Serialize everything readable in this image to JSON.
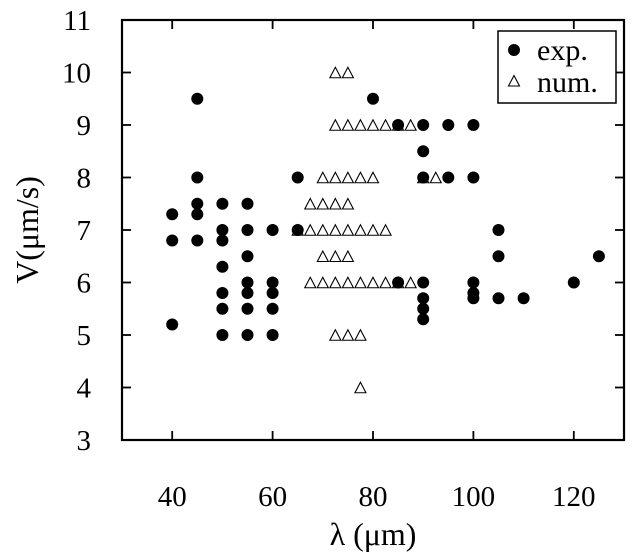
{
  "chart_data": {
    "type": "scatter",
    "xlabel": "λ (μm)",
    "ylabel": "V(μm/s)",
    "xlim": [
      30,
      130
    ],
    "ylim": [
      3,
      11
    ],
    "xticks": [
      40,
      60,
      80,
      100,
      120
    ],
    "yticks": [
      3,
      4,
      5,
      6,
      7,
      8,
      9,
      10,
      11
    ],
    "grid": false,
    "legend_position": "top-right",
    "series": [
      {
        "name": "exp.",
        "marker": "filled-circle",
        "color": "#000000",
        "points": [
          [
            40,
            7.3
          ],
          [
            40,
            6.8
          ],
          [
            40,
            5.2
          ],
          [
            45,
            9.5
          ],
          [
            45,
            8.0
          ],
          [
            45,
            7.5
          ],
          [
            45,
            7.3
          ],
          [
            45,
            6.8
          ],
          [
            50,
            7.5
          ],
          [
            50,
            7.0
          ],
          [
            50,
            6.8
          ],
          [
            50,
            6.3
          ],
          [
            50,
            5.8
          ],
          [
            50,
            5.5
          ],
          [
            50,
            5.0
          ],
          [
            55,
            7.5
          ],
          [
            55,
            7.0
          ],
          [
            55,
            6.5
          ],
          [
            55,
            6.0
          ],
          [
            55,
            5.8
          ],
          [
            55,
            5.5
          ],
          [
            55,
            5.0
          ],
          [
            60,
            7.0
          ],
          [
            60,
            6.0
          ],
          [
            60,
            5.8
          ],
          [
            60,
            5.5
          ],
          [
            60,
            5.0
          ],
          [
            65,
            8.0
          ],
          [
            65,
            7.0
          ],
          [
            80,
            9.5
          ],
          [
            85,
            9.0
          ],
          [
            85,
            6.0
          ],
          [
            90,
            9.0
          ],
          [
            90,
            8.5
          ],
          [
            90,
            8.0
          ],
          [
            90,
            6.0
          ],
          [
            90,
            5.7
          ],
          [
            90,
            5.5
          ],
          [
            90,
            5.3
          ],
          [
            95,
            9.0
          ],
          [
            95,
            8.0
          ],
          [
            100,
            9.0
          ],
          [
            100,
            8.0
          ],
          [
            100,
            6.0
          ],
          [
            100,
            5.8
          ],
          [
            100,
            5.7
          ],
          [
            105,
            7.0
          ],
          [
            105,
            6.5
          ],
          [
            105,
            5.7
          ],
          [
            110,
            5.7
          ],
          [
            120,
            6.0
          ],
          [
            125,
            6.5
          ]
        ]
      },
      {
        "name": "num.",
        "marker": "open-triangle",
        "color": "#000000",
        "points": [
          [
            72.5,
            10.0
          ],
          [
            75,
            10.0
          ],
          [
            72.5,
            9.0
          ],
          [
            75,
            9.0
          ],
          [
            77.5,
            9.0
          ],
          [
            80,
            9.0
          ],
          [
            82.5,
            9.0
          ],
          [
            85,
            9.0
          ],
          [
            87.5,
            9.0
          ],
          [
            70,
            8.0
          ],
          [
            72.5,
            8.0
          ],
          [
            75,
            8.0
          ],
          [
            77.5,
            8.0
          ],
          [
            80,
            8.0
          ],
          [
            90,
            8.0
          ],
          [
            92.5,
            8.0
          ],
          [
            67.5,
            7.5
          ],
          [
            70,
            7.5
          ],
          [
            72.5,
            7.5
          ],
          [
            75,
            7.5
          ],
          [
            65,
            7.0
          ],
          [
            67.5,
            7.0
          ],
          [
            70,
            7.0
          ],
          [
            72.5,
            7.0
          ],
          [
            75,
            7.0
          ],
          [
            77.5,
            7.0
          ],
          [
            80,
            7.0
          ],
          [
            82.5,
            7.0
          ],
          [
            70,
            6.5
          ],
          [
            72.5,
            6.5
          ],
          [
            75,
            6.5
          ],
          [
            67.5,
            6.0
          ],
          [
            70,
            6.0
          ],
          [
            72.5,
            6.0
          ],
          [
            75,
            6.0
          ],
          [
            77.5,
            6.0
          ],
          [
            80,
            6.0
          ],
          [
            82.5,
            6.0
          ],
          [
            85,
            6.0
          ],
          [
            87.5,
            6.0
          ],
          [
            72.5,
            5.0
          ],
          [
            75,
            5.0
          ],
          [
            77.5,
            5.0
          ],
          [
            77.5,
            4.0
          ]
        ]
      }
    ]
  }
}
